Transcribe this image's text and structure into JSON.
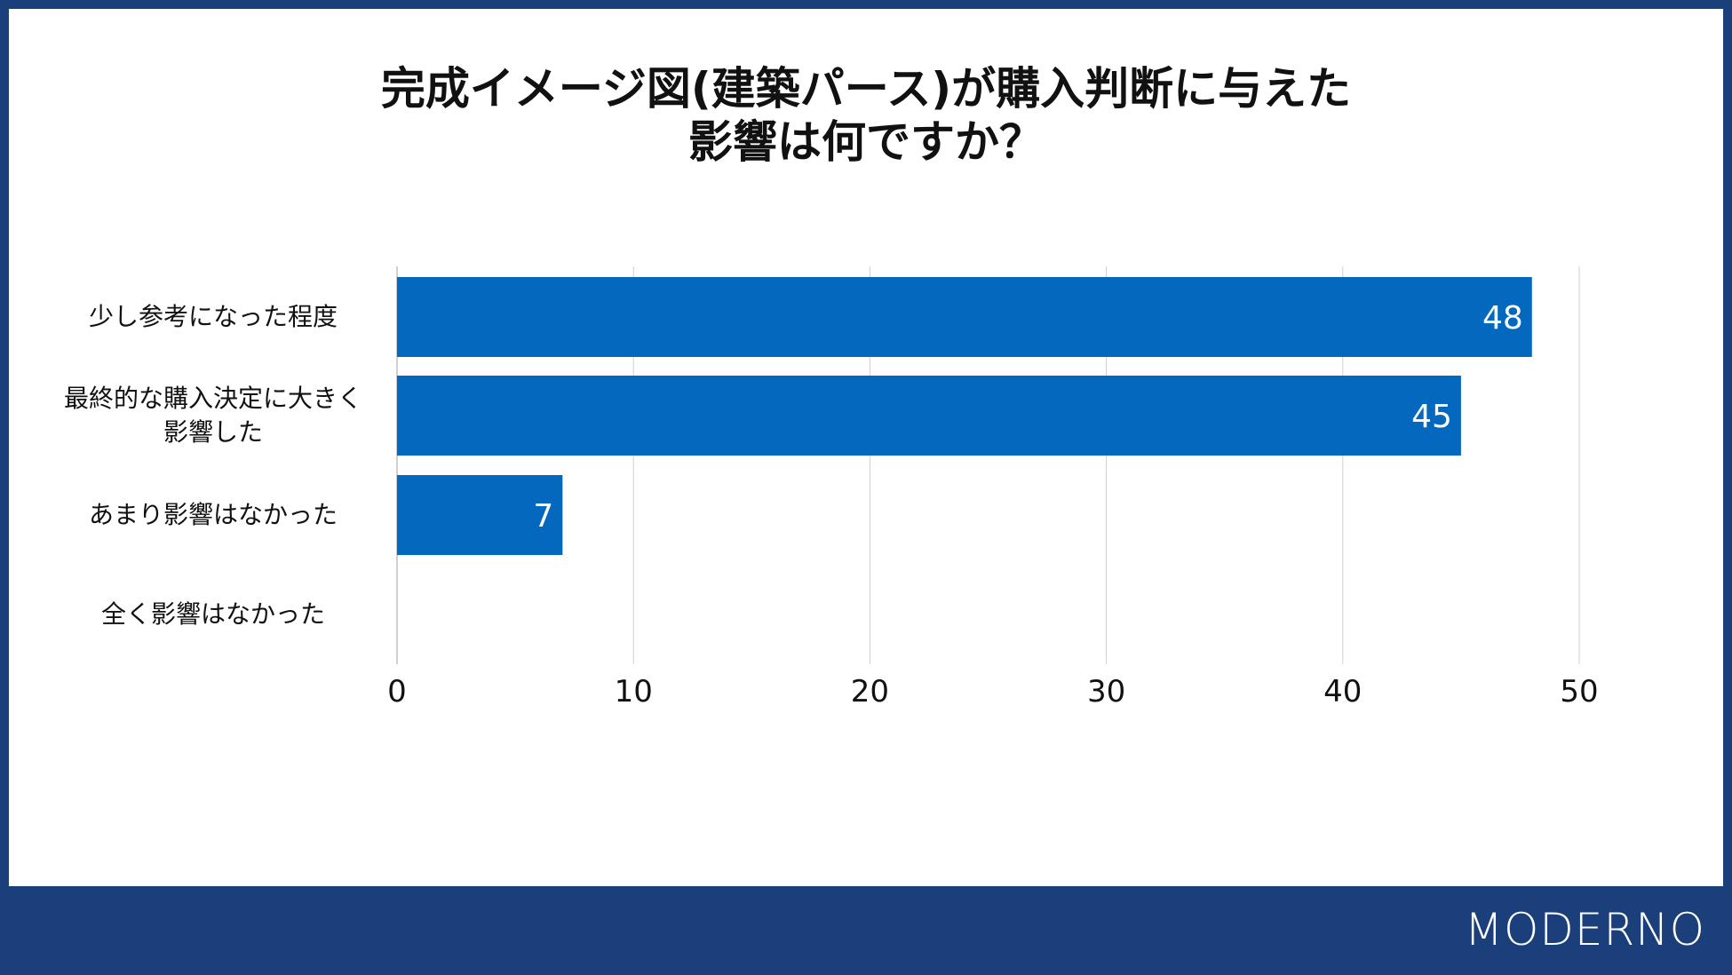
{
  "brand": {
    "logo": "MODERNO"
  },
  "colors": {
    "frame": "#1a3f7a",
    "bar": "#0468bf",
    "grid": "#d0d0d0"
  },
  "chart_data": {
    "type": "bar",
    "orientation": "horizontal",
    "title": "完成イメージ図(建築パース)が購入判断に与えた\n影響は何ですか？",
    "categories": [
      "少し参考になった程度",
      "最終的な購入決定に大きく\n影響した",
      "あまり影響はなかった",
      "全く影響はなかった"
    ],
    "values": [
      48,
      45,
      7,
      0
    ],
    "data_labels": [
      "48",
      "45",
      "7",
      ""
    ],
    "xlim": [
      0,
      50
    ],
    "xticks": [
      0,
      10,
      20,
      30,
      40,
      50
    ],
    "grid": "vertical",
    "legend": "none"
  }
}
